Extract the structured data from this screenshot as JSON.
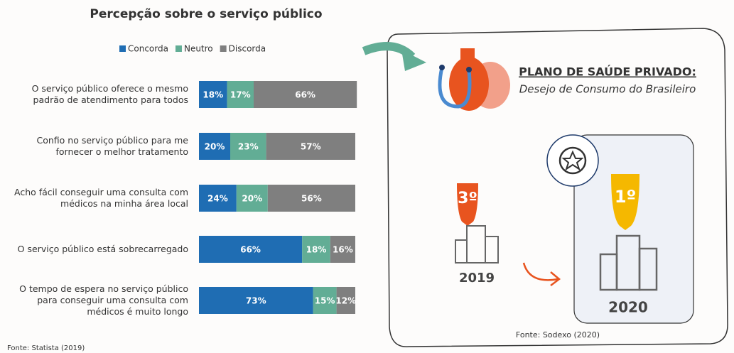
{
  "chart_data": {
    "type": "stacked-barh",
    "title": "Percepção sobre o serviço público",
    "categories": [
      "O serviço público oferece o mesmo padrão de atendimento para todos",
      "Confio no serviço público para me fornecer o melhor tratamento",
      "Acho fácil conseguir uma consulta com médicos na minha área local",
      "O serviço público está sobrecarregado",
      "O tempo de espera no serviço público para conseguir uma consulta com médicos é muito longo"
    ],
    "series": [
      {
        "name": "Concorda",
        "color": "#1f6db3",
        "values": [
          18,
          20,
          24,
          66,
          73
        ],
        "value_labels": [
          "18%",
          "20%",
          "24%",
          "66%",
          "73%"
        ]
      },
      {
        "name": "Neutro",
        "color": "#62ad95",
        "values": [
          17,
          23,
          20,
          18,
          15
        ],
        "value_labels": [
          "17%",
          "23%",
          "20%",
          "18%",
          "15%"
        ]
      },
      {
        "name": "Discorda",
        "color": "#7f7f7f",
        "values": [
          66,
          57,
          56,
          16,
          12
        ],
        "value_labels": [
          "66%",
          "57%",
          "56%",
          "16%",
          "12%"
        ]
      }
    ],
    "xlim": [
      0,
      100
    ],
    "source": "Fonte: Statista (2019)"
  },
  "panel": {
    "title": "PLANO DE SAÚDE PRIVADO:",
    "subtitle": "Desejo de Consumo do Brasileiro",
    "rank_2019": "3º",
    "year_2019": "2019",
    "rank_2020": "1º",
    "year_2020": "2020",
    "source": "Fonte: Sodexo (2020)"
  }
}
